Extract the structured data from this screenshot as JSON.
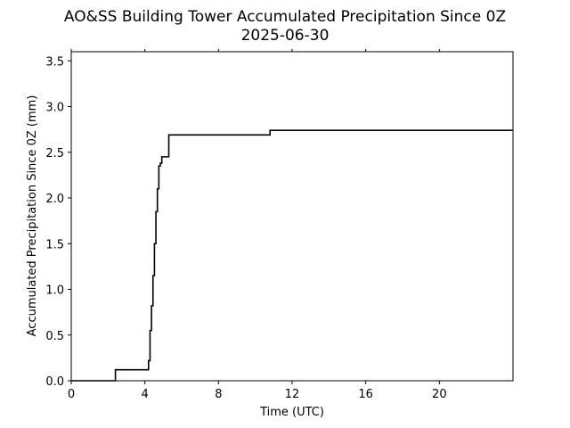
{
  "chart_data": {
    "type": "line",
    "title_line1": "AO&SS Building Tower Accumulated Precipitation Since 0Z",
    "title_line2": "2025-06-30",
    "xlabel": "Time (UTC)",
    "ylabel": "Accumulated Precipitation Since 0Z (mm)",
    "xlim": [
      0,
      24
    ],
    "ylim": [
      0,
      3.6
    ],
    "xticks": [
      {
        "value": 0,
        "label": "0"
      },
      {
        "value": 4,
        "label": "4"
      },
      {
        "value": 8,
        "label": "8"
      },
      {
        "value": 12,
        "label": "12"
      },
      {
        "value": 16,
        "label": "16"
      },
      {
        "value": 20,
        "label": "20"
      }
    ],
    "yticks": [
      {
        "value": 0.0,
        "label": "0.0"
      },
      {
        "value": 0.5,
        "label": "0.5"
      },
      {
        "value": 1.0,
        "label": "1.0"
      },
      {
        "value": 1.5,
        "label": "1.5"
      },
      {
        "value": 2.0,
        "label": "2.0"
      },
      {
        "value": 2.5,
        "label": "2.5"
      },
      {
        "value": 3.0,
        "label": "3.0"
      },
      {
        "value": 3.5,
        "label": "3.5"
      }
    ],
    "grid": false,
    "line_color": "#000000",
    "series": [
      {
        "x": [
          0,
          2.4,
          2.4,
          4.2,
          4.2,
          4.28,
          4.28,
          4.36,
          4.36,
          4.44,
          4.44,
          4.52,
          4.52,
          4.6,
          4.6,
          4.68,
          4.68,
          4.76,
          4.76,
          4.84,
          4.84,
          4.92,
          4.92,
          5.0,
          5.0,
          5.3,
          5.3,
          10.8,
          10.8,
          24
        ],
        "y": [
          0,
          0,
          0.12,
          0.12,
          0.22,
          0.22,
          0.55,
          0.55,
          0.82,
          0.82,
          1.15,
          1.15,
          1.5,
          1.5,
          1.85,
          1.85,
          2.1,
          2.1,
          2.35,
          2.35,
          2.38,
          2.38,
          2.45,
          2.45,
          2.45,
          2.45,
          2.69,
          2.69,
          2.74,
          2.74
        ]
      }
    ]
  }
}
